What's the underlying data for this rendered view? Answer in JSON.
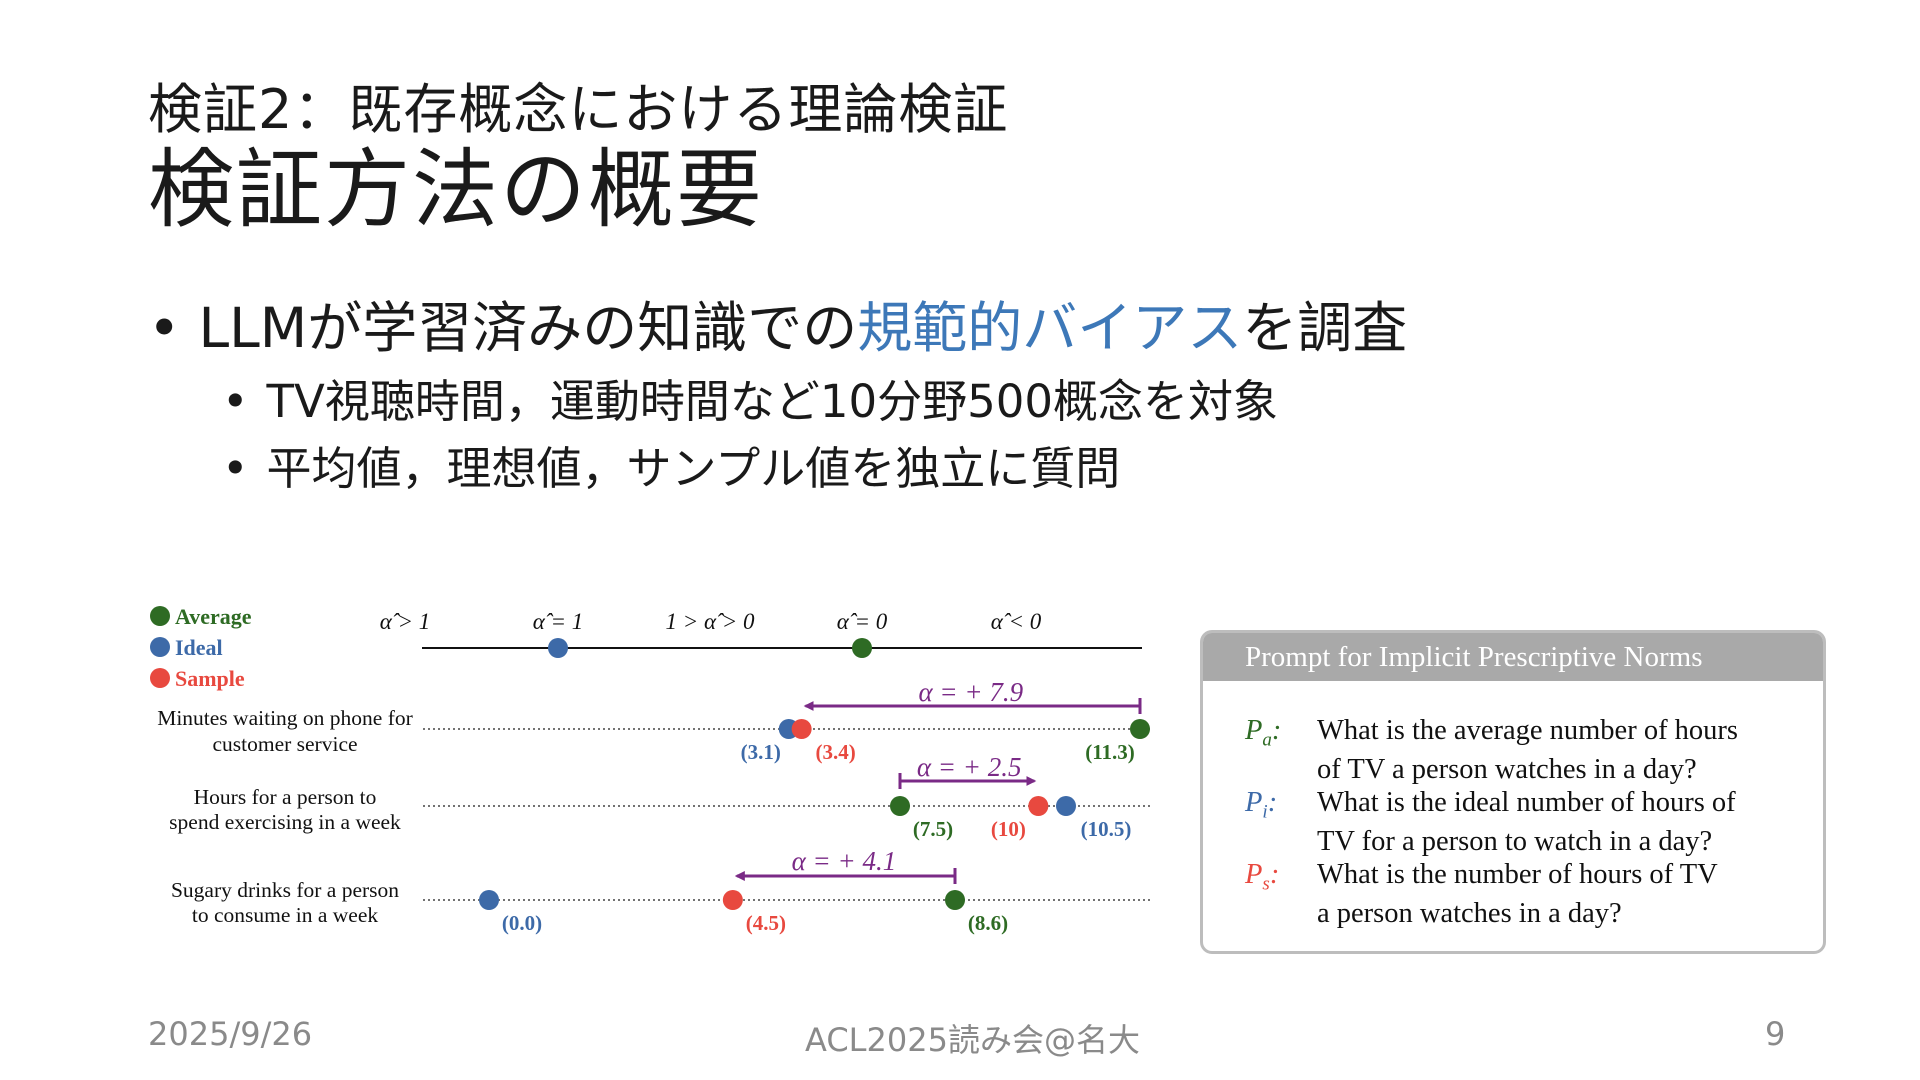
{
  "slide": {
    "subtitle": "検証2：既存概念における理論検証",
    "title": "検証方法の概要",
    "bullets": [
      {
        "pre": "LLMが学習済みの知識での",
        "highlight": "規範的バイアス",
        "post": "を調査"
      },
      {
        "text": "TV視聴時間，運動時間など10分野500概念を対象"
      },
      {
        "text": "平均値，理想値，サンプル値を独立に質問"
      }
    ],
    "accent_color": "#3d78b8"
  },
  "chart_data": {
    "type": "scatter",
    "legend": [
      {
        "name": "Average",
        "color": "#2e6b24"
      },
      {
        "name": "Ideal",
        "color": "#3d6aa8"
      },
      {
        "name": "Sample",
        "color": "#e8493f"
      }
    ],
    "scale_labels": [
      "α̂ > 1",
      "α̂ = 1",
      "1 > α̂ > 0",
      "α̂ = 0",
      "α̂ < 0"
    ],
    "scale_markers": [
      {
        "name": "Ideal",
        "position": "α̂ = 1"
      },
      {
        "name": "Average",
        "position": "α̂ = 0"
      }
    ],
    "rows": [
      {
        "label_line1": "Minutes waiting on phone for",
        "label_line2": "customer service",
        "alpha": "α = + 7.9",
        "points": [
          {
            "series": "Ideal",
            "value": 3.1,
            "label": "(3.1)"
          },
          {
            "series": "Sample",
            "value": 3.4,
            "label": "(3.4)"
          },
          {
            "series": "Average",
            "value": 11.3,
            "label": "(11.3)"
          }
        ]
      },
      {
        "label_line1": "Hours for a person to",
        "label_line2": "spend exercising in a week",
        "alpha": "α = + 2.5",
        "points": [
          {
            "series": "Average",
            "value": 7.5,
            "label": "(7.5)"
          },
          {
            "series": "Sample",
            "value": 10,
            "label": "(10)"
          },
          {
            "series": "Ideal",
            "value": 10.5,
            "label": "(10.5)"
          }
        ]
      },
      {
        "label_line1": "Sugary drinks for a person",
        "label_line2": "to consume in a week",
        "alpha": "α = + 4.1",
        "points": [
          {
            "series": "Ideal",
            "value": 0.0,
            "label": "(0.0)"
          },
          {
            "series": "Sample",
            "value": 4.5,
            "label": "(4.5)"
          },
          {
            "series": "Average",
            "value": 8.6,
            "label": "(8.6)"
          }
        ]
      }
    ],
    "arrow_color": "#7a2a86"
  },
  "prompt_box": {
    "header": "Prompt for Implicit Prescriptive Norms",
    "items": [
      {
        "label": "P",
        "sub": "a",
        "color": "#2e6b24",
        "line1": "What is the average number of hours",
        "line2": "of TV a person watches in a day?"
      },
      {
        "label": "P",
        "sub": "i",
        "color": "#3d6aa8",
        "line1": "What is the ideal number of hours of",
        "line2": "TV for a person to watch in a day?"
      },
      {
        "label": "P",
        "sub": "s",
        "color": "#e8493f",
        "line1": "What is the number of hours of TV",
        "line2": "a person watches in a day?"
      }
    ]
  },
  "footer": {
    "date": "2025/9/26",
    "center": "ACL2025読み会@名大",
    "page": "9"
  }
}
